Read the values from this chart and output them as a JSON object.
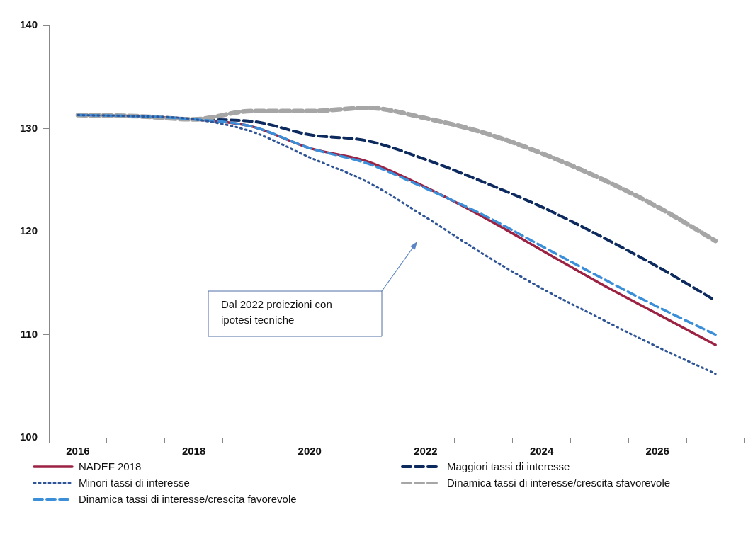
{
  "chart_data": {
    "type": "line",
    "categories": [
      "2016",
      null,
      "2018",
      null,
      "2020",
      null,
      "2022",
      null,
      "2024",
      null,
      "2026",
      null
    ],
    "ylim": [
      100,
      140
    ],
    "yticks": [
      100,
      110,
      120,
      130,
      140
    ],
    "grid": false,
    "legend": "bottom",
    "marker": "none",
    "annotations": [
      "Dal 2022 proiezioni con ipotesi tecniche"
    ],
    "series": [
      {
        "name": "NADEF 2018",
        "color": "#9b2242",
        "line_style": "solid",
        "values": [
          131.3,
          131.2,
          130.9,
          130.2,
          128.1,
          126.8,
          124.3,
          121.4,
          118.2,
          115.0,
          112.0,
          109.0
        ]
      },
      {
        "name": "Maggiori tassi di interesse",
        "color": "#0d2a5e",
        "line_style": "dashed",
        "values": [
          131.3,
          131.2,
          130.9,
          130.7,
          129.4,
          128.8,
          127.0,
          124.8,
          122.4,
          119.6,
          116.6,
          113.3
        ]
      },
      {
        "name": "Minori tassi di interesse",
        "color": "#2f5597",
        "line_style": "dotted",
        "values": [
          131.3,
          131.2,
          130.9,
          129.7,
          127.2,
          124.8,
          121.4,
          117.8,
          114.5,
          111.6,
          108.8,
          106.2
        ]
      },
      {
        "name": "Dinamica tassi di interesse/crescita sfavorevole",
        "color": "#a6a6a6",
        "line_style": "dashed",
        "values": [
          131.3,
          131.2,
          130.9,
          131.7,
          131.7,
          132.0,
          131.0,
          129.6,
          127.6,
          125.2,
          122.4,
          119.1
        ]
      },
      {
        "name": "Dinamica tassi di interesse/crescita favorevole",
        "color": "#3a8fd8",
        "line_style": "dashed",
        "values": [
          131.3,
          131.2,
          130.9,
          130.2,
          128.1,
          126.6,
          124.2,
          121.6,
          118.6,
          115.6,
          112.7,
          110.0
        ]
      }
    ]
  }
}
